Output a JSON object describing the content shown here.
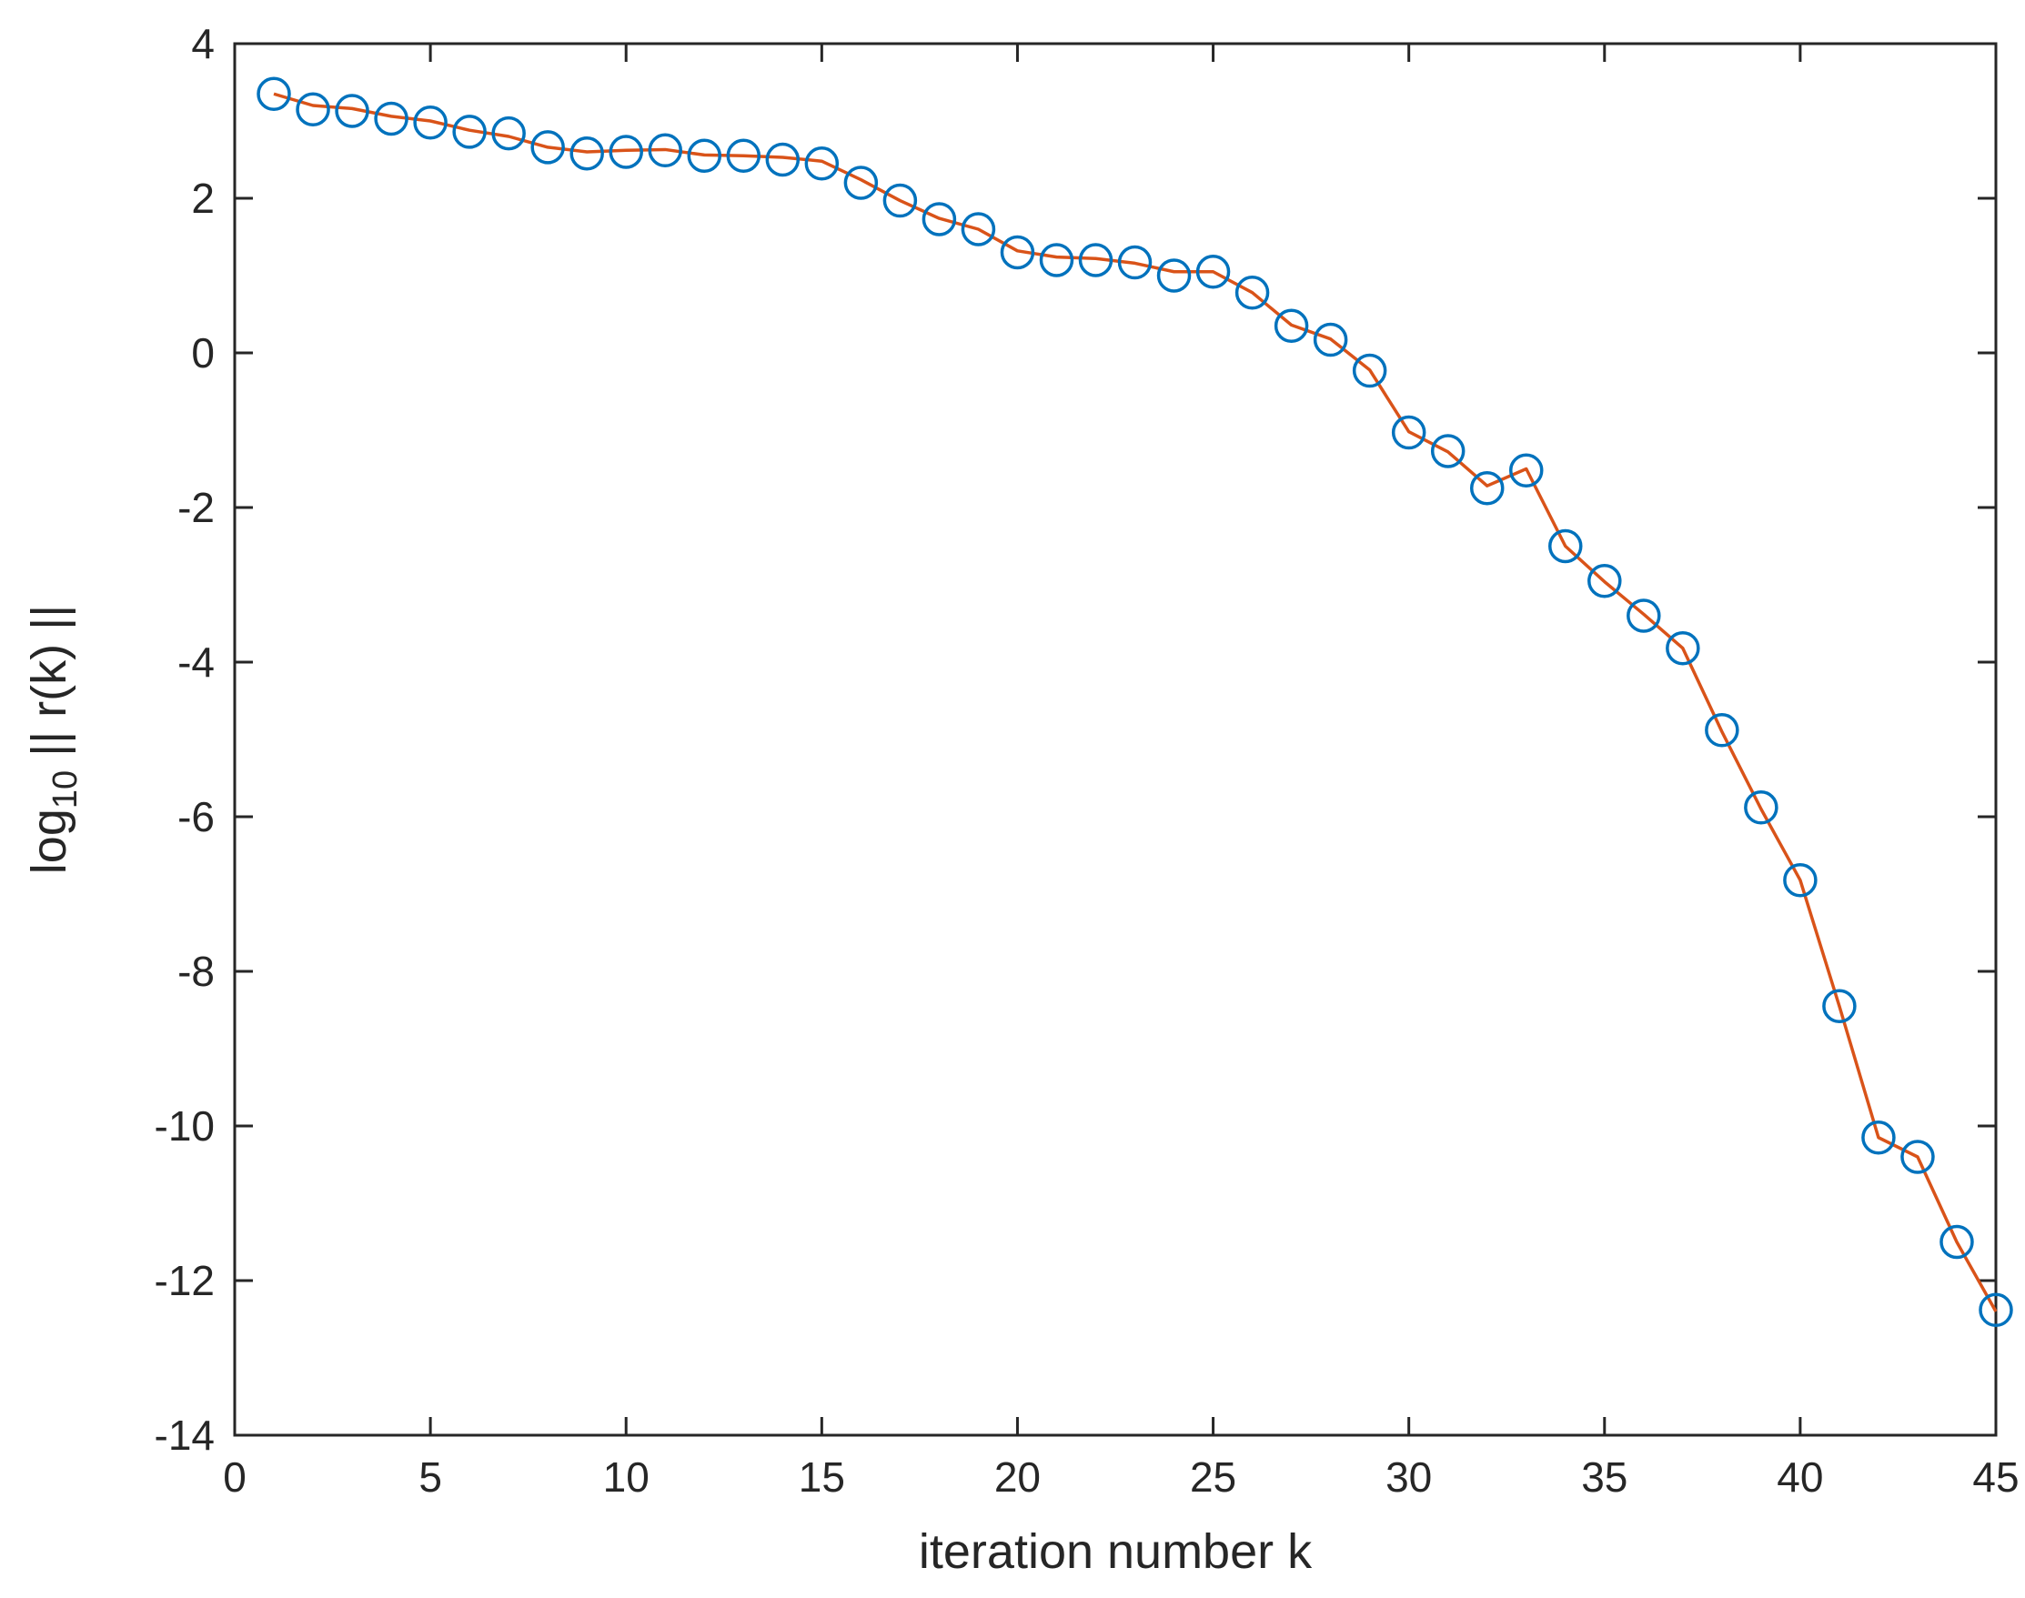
{
  "chart_data": {
    "type": "line",
    "title": "",
    "xlabel": "iteration number k",
    "ylabel": {
      "prefix": "log",
      "subscript": "10",
      "suffix": " || r(k) ||"
    },
    "xlim": [
      0,
      45
    ],
    "ylim": [
      -14,
      4
    ],
    "xticks": [
      0,
      5,
      10,
      15,
      20,
      25,
      30,
      35,
      40,
      45
    ],
    "yticks": [
      -14,
      -12,
      -10,
      -8,
      -6,
      -4,
      -2,
      0,
      2,
      4
    ],
    "grid": false,
    "x": [
      1,
      2,
      3,
      4,
      5,
      6,
      7,
      8,
      9,
      10,
      11,
      12,
      13,
      14,
      15,
      16,
      17,
      18,
      19,
      20,
      21,
      22,
      23,
      24,
      25,
      26,
      27,
      28,
      29,
      30,
      31,
      32,
      33,
      34,
      35,
      36,
      37,
      38,
      39,
      40,
      41,
      42,
      43,
      44,
      45
    ],
    "series": [
      {
        "style": "markers",
        "marker": "circle",
        "color": "#0072BD",
        "values": [
          3.35,
          3.15,
          3.13,
          3.03,
          2.98,
          2.86,
          2.84,
          2.66,
          2.58,
          2.6,
          2.62,
          2.55,
          2.55,
          2.5,
          2.45,
          2.2,
          1.97,
          1.73,
          1.6,
          1.3,
          1.2,
          1.2,
          1.17,
          1.0,
          1.05,
          0.78,
          0.35,
          0.17,
          -0.23,
          -1.03,
          -1.27,
          -1.75,
          -1.52,
          -2.5,
          -2.95,
          -3.4,
          -3.82,
          -4.88,
          -5.88,
          -6.82,
          -8.45,
          -10.15,
          -10.4,
          -11.5,
          -12.38
        ]
      },
      {
        "style": "line",
        "color": "#D95319",
        "values": [
          3.35,
          3.2,
          3.16,
          3.06,
          3.0,
          2.88,
          2.8,
          2.66,
          2.6,
          2.62,
          2.63,
          2.56,
          2.55,
          2.53,
          2.48,
          2.24,
          1.97,
          1.74,
          1.6,
          1.32,
          1.24,
          1.22,
          1.16,
          1.05,
          1.05,
          0.78,
          0.36,
          0.18,
          -0.22,
          -1.02,
          -1.28,
          -1.72,
          -1.5,
          -2.5,
          -2.96,
          -3.38,
          -3.82,
          -4.9,
          -5.9,
          -6.82,
          -8.45,
          -10.15,
          -10.4,
          -11.5,
          -12.4
        ]
      }
    ]
  }
}
